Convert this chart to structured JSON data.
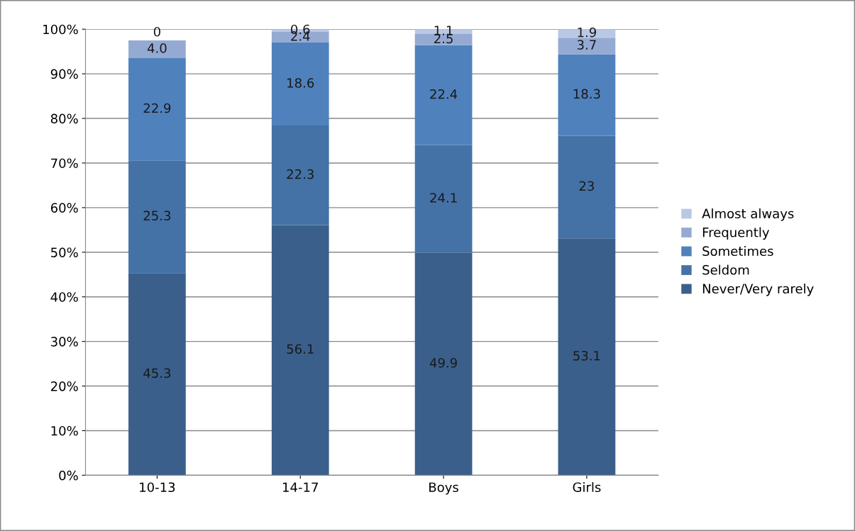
{
  "chart_data": {
    "type": "bar",
    "stacked": true,
    "categories": [
      "10-13",
      "14-17",
      "Boys",
      "Girls"
    ],
    "series": [
      {
        "name": "Never/Very rarely",
        "color": "#3a5f8b",
        "values": [
          45.3,
          56.1,
          49.9,
          53.1
        ],
        "value_labels": [
          "45.3",
          "56.1",
          "49.9",
          "53.1"
        ]
      },
      {
        "name": "Seldom",
        "color": "#4472a6",
        "values": [
          25.3,
          22.3,
          24.1,
          23
        ],
        "value_labels": [
          "25.3",
          "22.3",
          "24.1",
          "23"
        ]
      },
      {
        "name": "Sometimes",
        "color": "#4f81bd",
        "values": [
          22.9,
          18.6,
          22.4,
          18.3
        ],
        "value_labels": [
          "22.9",
          "18.6",
          "22.4",
          "18.3"
        ]
      },
      {
        "name": "Frequently",
        "color": "#95aad3",
        "values": [
          4.0,
          2.4,
          2.5,
          3.7
        ],
        "value_labels": [
          "4.0",
          "2.4",
          "2.5",
          "3.7"
        ]
      },
      {
        "name": "Almost always",
        "color": "#b9c8e4",
        "values": [
          0,
          0.6,
          1.1,
          1.9
        ],
        "value_labels": [
          "0",
          "0.6",
          "1.1",
          "1.9"
        ]
      }
    ],
    "ylim": [
      0,
      100
    ],
    "yticks": [
      {
        "value": 0,
        "label": "0%"
      },
      {
        "value": 10,
        "label": "10%"
      },
      {
        "value": 20,
        "label": "20%"
      },
      {
        "value": 30,
        "label": "30%"
      },
      {
        "value": 40,
        "label": "40%"
      },
      {
        "value": 50,
        "label": "50%"
      },
      {
        "value": 60,
        "label": "60%"
      },
      {
        "value": 70,
        "label": "70%"
      },
      {
        "value": 80,
        "label": "80%"
      },
      {
        "value": 90,
        "label": "90%"
      },
      {
        "value": 100,
        "label": "100%"
      }
    ],
    "grid": "y",
    "legend": "right"
  }
}
